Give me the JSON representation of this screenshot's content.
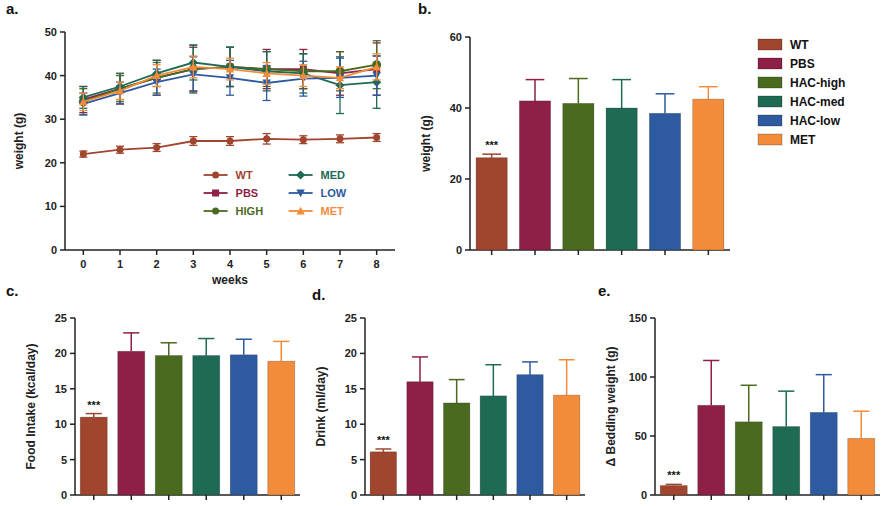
{
  "chart_data": [
    {
      "type": "line",
      "title": "a.",
      "x_label": "weeks",
      "y_label": "weight (g)",
      "x": [
        0,
        1,
        2,
        3,
        4,
        5,
        6,
        7,
        8
      ],
      "xlim": [
        -0.5,
        8.5
      ],
      "xticks": [
        0,
        1,
        2,
        3,
        4,
        5,
        6,
        7,
        8
      ],
      "ylim": [
        0,
        50
      ],
      "yticks": [
        0,
        10,
        20,
        30,
        40,
        50
      ],
      "legend": "lower right",
      "series": [
        {
          "name": "WT",
          "color": "#a0452e",
          "marker": "circle",
          "values": [
            22,
            23,
            23.5,
            25,
            25,
            25.5,
            25.3,
            25.5,
            25.8
          ],
          "errors": [
            0.7,
            0.8,
            0.9,
            1,
            1,
            1.2,
            0.9,
            0.9,
            0.9
          ]
        },
        {
          "name": "PBS",
          "color": "#8e1f47",
          "marker": "square",
          "values": [
            34.5,
            37,
            39.5,
            41.5,
            42,
            41.5,
            41.5,
            40.5,
            41.5
          ],
          "errors": [
            3,
            3.5,
            4,
            5,
            4.5,
            4.5,
            4.5,
            5,
            6
          ]
        },
        {
          "name": "HIGH",
          "color": "#4a6b1f",
          "marker": "circle",
          "values": [
            34,
            37,
            39.5,
            41.5,
            42,
            41.5,
            41,
            41,
            42.5
          ],
          "errors": [
            3,
            3,
            3.5,
            5.5,
            4.5,
            4,
            4,
            4.5,
            5.5
          ]
        },
        {
          "name": "MED",
          "color": "#1e6a55",
          "marker": "diamond",
          "values": [
            35,
            37.5,
            40.5,
            43,
            42,
            41,
            40.5,
            37.8,
            38.5
          ],
          "errors": [
            2.5,
            3,
            3,
            4,
            4.5,
            4.5,
            4.5,
            6.5,
            6
          ]
        },
        {
          "name": "LOW",
          "color": "#2e5aa0",
          "marker": "triangle-down",
          "values": [
            33.5,
            36,
            38.5,
            40.3,
            39.5,
            38.3,
            39.3,
            39.5,
            40
          ],
          "errors": [
            2.5,
            2.5,
            3,
            4,
            4,
            4,
            4,
            4.5,
            4.5
          ]
        },
        {
          "name": "MET",
          "color": "#f28c3a",
          "marker": "triangle-up",
          "values": [
            34,
            36.5,
            40,
            42,
            41.5,
            40.5,
            40,
            39.5,
            42
          ],
          "errors": [
            2,
            2,
            2.5,
            2.5,
            2.5,
            2.5,
            2.5,
            2.5,
            3
          ]
        }
      ]
    },
    {
      "type": "bar",
      "title": "b.",
      "y_label": "weight (g)",
      "categories": [
        "WT",
        "PBS",
        "HAC-high",
        "HAC-med",
        "HAC-low",
        "MET"
      ],
      "colors": [
        "#a0452e",
        "#8e1f47",
        "#4a6b1f",
        "#1e6a55",
        "#2e5aa0",
        "#f28c3a"
      ],
      "values": [
        26,
        42,
        41.3,
        40,
        38.5,
        42.5
      ],
      "errors": [
        1,
        6,
        7,
        8,
        5.5,
        3.5
      ],
      "ylim": [
        0,
        60
      ],
      "yticks": [
        0,
        20,
        40,
        60
      ],
      "tick_labels": "y",
      "legend": "right",
      "annotations": [
        {
          "index": 0,
          "text": "***"
        }
      ]
    },
    {
      "type": "bar",
      "title": "c.",
      "y_label": "Food Intake (kcal/day)",
      "categories": [
        null,
        null,
        null,
        null,
        null,
        null
      ],
      "colors": [
        "#a0452e",
        "#8e1f47",
        "#4a6b1f",
        "#1e6a55",
        "#2e5aa0",
        "#f28c3a"
      ],
      "values": [
        11,
        20.3,
        19.7,
        19.7,
        19.8,
        18.9
      ],
      "errors": [
        0.5,
        2.6,
        1.8,
        2.4,
        2.2,
        2.8
      ],
      "ylim": [
        0,
        25
      ],
      "yticks": [
        0,
        5,
        10,
        15,
        20,
        25
      ],
      "tick_labels": "y",
      "annotations": [
        {
          "index": 0,
          "text": "***"
        }
      ]
    },
    {
      "type": "bar",
      "title": "d.",
      "y_label": "Drink (ml/day)",
      "categories": [
        null,
        null,
        null,
        null,
        null,
        null
      ],
      "colors": [
        "#a0452e",
        "#8e1f47",
        "#4a6b1f",
        "#1e6a55",
        "#2e5aa0",
        "#f28c3a"
      ],
      "values": [
        6.1,
        16,
        13,
        14,
        17,
        14.1
      ],
      "errors": [
        0.4,
        3.5,
        3.3,
        4.4,
        1.8,
        5
      ],
      "ylim": [
        0,
        25
      ],
      "yticks": [
        0,
        5,
        10,
        15,
        20,
        25
      ],
      "tick_labels": "y",
      "annotations": [
        {
          "index": 0,
          "text": "***"
        }
      ]
    },
    {
      "type": "bar",
      "title": "e.",
      "y_label": "Δ Bedding weight (g)",
      "categories": [
        null,
        null,
        null,
        null,
        null,
        null
      ],
      "colors": [
        "#a0452e",
        "#8e1f47",
        "#4a6b1f",
        "#1e6a55",
        "#2e5aa0",
        "#f28c3a"
      ],
      "values": [
        8,
        76,
        62,
        58,
        70,
        48
      ],
      "errors": [
        1,
        38,
        31,
        30,
        32,
        23
      ],
      "ylim": [
        0,
        150
      ],
      "yticks": [
        0,
        50,
        100,
        150
      ],
      "tick_labels": "y",
      "annotations": [
        {
          "index": 0,
          "text": "***"
        }
      ]
    }
  ]
}
